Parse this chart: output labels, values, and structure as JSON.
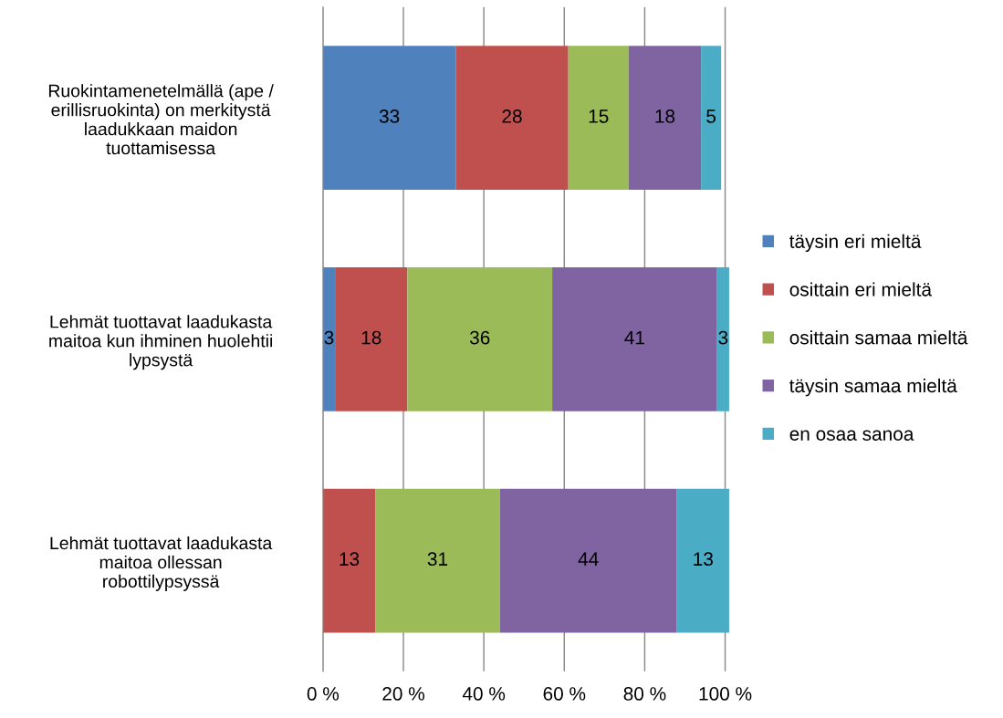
{
  "chart_data": {
    "type": "bar",
    "orientation": "horizontal",
    "stacked": true,
    "categories": [
      "Ruokintamenetelmällä (ape /\nerillisruokinta) on merkitystä\nlaadukkaan maidon\ntuottamisessa",
      "Lehmät tuottavat laadukasta\nmaitoa kun ihminen huolehtii\nlypsystä",
      "Lehmät tuottavat laadukasta\nmaitoa ollessan\nrobottilypsyssä"
    ],
    "series": [
      {
        "name": "täysin eri mieltä",
        "color": "#4f81bd",
        "values": [
          33,
          3,
          0
        ],
        "value_labels": [
          "33",
          "3",
          null
        ]
      },
      {
        "name": "osittain eri mieltä",
        "color": "#c0504d",
        "values": [
          28,
          18,
          13
        ],
        "value_labels": [
          "28",
          "18",
          "13"
        ]
      },
      {
        "name": "osittain samaa mieltä",
        "color": "#9bbb59",
        "values": [
          15,
          36,
          31
        ],
        "value_labels": [
          "15",
          "36",
          "31"
        ]
      },
      {
        "name": "täysin samaa mieltä",
        "color": "#8064a2",
        "values": [
          18,
          41,
          44
        ],
        "value_labels": [
          "18",
          "41",
          "44"
        ]
      },
      {
        "name": "en osaa sanoa",
        "color": "#4bacc6",
        "values": [
          5,
          3,
          13
        ],
        "value_labels": [
          "5",
          "3",
          "13"
        ]
      }
    ],
    "xlim": [
      0,
      101
    ],
    "xticks": [
      {
        "value": 0,
        "label": "0 %"
      },
      {
        "value": 20,
        "label": "20 %"
      },
      {
        "value": 40,
        "label": "40 %"
      },
      {
        "value": 60,
        "label": "60 %"
      },
      {
        "value": 80,
        "label": "80 %"
      },
      {
        "value": 100,
        "label": "100 %"
      }
    ],
    "grid": "x",
    "legend": "right"
  }
}
